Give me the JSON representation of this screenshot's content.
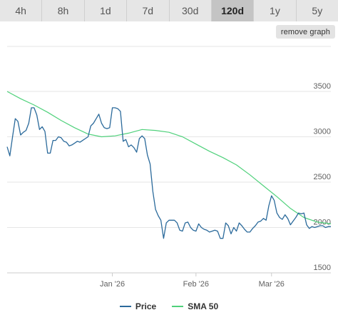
{
  "tabs": [
    {
      "label": "4h",
      "active": false
    },
    {
      "label": "8h",
      "active": false
    },
    {
      "label": "1d",
      "active": false
    },
    {
      "label": "7d",
      "active": false
    },
    {
      "label": "30d",
      "active": false
    },
    {
      "label": "120d",
      "active": true
    },
    {
      "label": "1y",
      "active": false
    },
    {
      "label": "5y",
      "active": false
    }
  ],
  "remove_graph_label": "remove graph",
  "colors": {
    "price": "#2b6a9b",
    "sma": "#4fd17b"
  },
  "chart_data": {
    "type": "line",
    "title": "",
    "xlabel": "",
    "ylabel": "",
    "ylim": [
      1500,
      3500
    ],
    "y_ticks": [
      1500,
      2000,
      2500,
      3000,
      3500
    ],
    "x_ticks": [
      {
        "label": "Jan '26",
        "x": "2026-01-01"
      },
      {
        "label": "Feb '26",
        "x": "2026-02-01"
      },
      {
        "label": "Mar '26",
        "x": "2026-03-01"
      }
    ],
    "xlim": [
      "2025-11-23",
      "2026-03-23"
    ],
    "grid": true,
    "legend": "bottom-center",
    "series": [
      {
        "name": "Price",
        "x": [
          "2025-11-23",
          "2025-11-24",
          "2025-11-25",
          "2025-11-26",
          "2025-11-27",
          "2025-11-28",
          "2025-11-29",
          "2025-11-30",
          "2025-12-01",
          "2025-12-02",
          "2025-12-03",
          "2025-12-04",
          "2025-12-05",
          "2025-12-06",
          "2025-12-07",
          "2025-12-08",
          "2025-12-09",
          "2025-12-10",
          "2025-12-11",
          "2025-12-12",
          "2025-12-13",
          "2025-12-14",
          "2025-12-15",
          "2025-12-16",
          "2025-12-17",
          "2025-12-18",
          "2025-12-19",
          "2025-12-20",
          "2025-12-21",
          "2025-12-22",
          "2025-12-23",
          "2025-12-24",
          "2025-12-25",
          "2025-12-26",
          "2025-12-27",
          "2025-12-28",
          "2025-12-29",
          "2025-12-30",
          "2025-12-31",
          "2026-01-01",
          "2026-01-02",
          "2026-01-03",
          "2026-01-04",
          "2026-01-05",
          "2026-01-06",
          "2026-01-07",
          "2026-01-08",
          "2026-01-09",
          "2026-01-10",
          "2026-01-11",
          "2026-01-12",
          "2026-01-13",
          "2026-01-14",
          "2026-01-15",
          "2026-01-16",
          "2026-01-17",
          "2026-01-18",
          "2026-01-19",
          "2026-01-20",
          "2026-01-21",
          "2026-01-22",
          "2026-01-23",
          "2026-01-24",
          "2026-01-25",
          "2026-01-26",
          "2026-01-27",
          "2026-01-28",
          "2026-01-29",
          "2026-01-30",
          "2026-01-31",
          "2026-02-01",
          "2026-02-02",
          "2026-02-03",
          "2026-02-04",
          "2026-02-05",
          "2026-02-06",
          "2026-02-07",
          "2026-02-08",
          "2026-02-09",
          "2026-02-10",
          "2026-02-11",
          "2026-02-12",
          "2026-02-13",
          "2026-02-14",
          "2026-02-15",
          "2026-02-16",
          "2026-02-17",
          "2026-02-18",
          "2026-02-19",
          "2026-02-20",
          "2026-02-21",
          "2026-02-22",
          "2026-02-23",
          "2026-02-24",
          "2026-02-25",
          "2026-02-26",
          "2026-02-27",
          "2026-02-28",
          "2026-03-01",
          "2026-03-02",
          "2026-03-03",
          "2026-03-04",
          "2026-03-05",
          "2026-03-06",
          "2026-03-07",
          "2026-03-08",
          "2026-03-09",
          "2026-03-10",
          "2026-03-11",
          "2026-03-12",
          "2026-03-13",
          "2026-03-14",
          "2026-03-15",
          "2026-03-16",
          "2026-03-17",
          "2026-03-18",
          "2026-03-19",
          "2026-03-20",
          "2026-03-21",
          "2026-03-22",
          "2026-03-23"
        ],
        "values": [
          2890,
          2790,
          3000,
          3200,
          3170,
          3020,
          3050,
          3070,
          3150,
          3320,
          3320,
          3240,
          3080,
          3110,
          3060,
          2820,
          2820,
          2960,
          2960,
          3000,
          2990,
          2950,
          2940,
          2900,
          2910,
          2930,
          2950,
          2940,
          2960,
          2980,
          3000,
          3120,
          3150,
          3200,
          3250,
          3150,
          3100,
          3090,
          3100,
          3320,
          3320,
          3310,
          3280,
          2950,
          2970,
          2890,
          2910,
          2880,
          2830,
          2980,
          3010,
          2980,
          2800,
          2700,
          2400,
          2200,
          2130,
          2080,
          1880,
          2050,
          2080,
          2080,
          2080,
          2050,
          1970,
          1960,
          2050,
          2060,
          2000,
          1970,
          1960,
          2040,
          2000,
          1980,
          1970,
          1950,
          1960,
          1970,
          1960,
          1880,
          1880,
          2050,
          2020,
          1930,
          2000,
          1960,
          2050,
          2020,
          1980,
          1950,
          1950,
          1990,
          2020,
          2060,
          2070,
          2100,
          2080,
          2240,
          2350,
          2300,
          2160,
          2110,
          2090,
          2140,
          2100,
          2030,
          2070,
          2110,
          2160,
          2150,
          2160,
          2030,
          1990,
          2010,
          2000,
          2010,
          2020,
          2020,
          2000,
          2010,
          2010
        ]
      },
      {
        "name": "SMA 50",
        "x": [
          "2025-11-23",
          "2025-11-28",
          "2025-12-03",
          "2025-12-08",
          "2025-12-13",
          "2025-12-18",
          "2025-12-23",
          "2025-12-28",
          "2026-01-02",
          "2026-01-07",
          "2026-01-12",
          "2026-01-17",
          "2026-01-22",
          "2026-01-27",
          "2026-02-01",
          "2026-02-06",
          "2026-02-11",
          "2026-02-16",
          "2026-02-21",
          "2026-02-26",
          "2026-03-03",
          "2026-03-08",
          "2026-03-13",
          "2026-03-18",
          "2026-03-23"
        ],
        "values": [
          3500,
          3420,
          3350,
          3270,
          3180,
          3100,
          3030,
          3000,
          3010,
          3040,
          3080,
          3070,
          3050,
          3000,
          2920,
          2840,
          2770,
          2690,
          2580,
          2460,
          2340,
          2210,
          2110,
          2060,
          2040
        ]
      }
    ]
  }
}
